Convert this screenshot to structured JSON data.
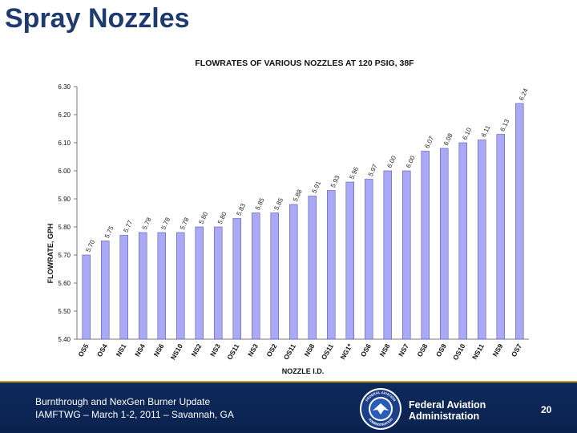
{
  "slide": {
    "title": "Spray Nozzles"
  },
  "colors": {
    "bar_fill": "#a9a9f5",
    "bar_stroke": "#5a5ab8",
    "title_color": "#1f3a6e",
    "footer_bg": "#0e2a5a",
    "footer_rule": "#c9a227"
  },
  "chart_data": {
    "type": "bar",
    "title": "FLOWRATES OF VARIOUS NOZZLES AT 120 PSIG, 38F",
    "xlabel": "NOZZLE I.D.",
    "ylabel": "FLOWRATE, GPH",
    "ylim": [
      5.4,
      6.3
    ],
    "yticks": [
      "5.40",
      "5.50",
      "5.60",
      "5.70",
      "5.80",
      "5.90",
      "6.00",
      "6.10",
      "6.20",
      "6.30"
    ],
    "categories": [
      "OS5",
      "OS4",
      "NS1",
      "NS4",
      "NS6",
      "NS10",
      "NS2",
      "NS3",
      "OS11",
      "NS3",
      "OS2",
      "OS11",
      "NS8",
      "OS11",
      "NG1*",
      "OS6",
      "NS8",
      "NS7",
      "OS8",
      "OS9",
      "OS10",
      "NS11",
      "NS9",
      "OS7"
    ],
    "values": [
      5.7,
      5.75,
      5.77,
      5.78,
      5.78,
      5.78,
      5.8,
      5.8,
      5.83,
      5.85,
      5.85,
      5.88,
      5.91,
      5.93,
      5.96,
      5.97,
      6.0,
      6.0,
      6.07,
      6.08,
      6.1,
      6.11,
      6.13,
      6.24
    ],
    "data_labels": [
      "5.70",
      "5.75",
      "5.77",
      "5.78",
      "5.78",
      "5.78",
      "5.80",
      "5.80",
      "5.83",
      "5.85",
      "5.85",
      "5.88",
      "5.91",
      "5.93",
      "5.96",
      "5.97",
      "6.00",
      "6.00",
      "6.07",
      "6.08",
      "6.10",
      "6.11",
      "6.13",
      "6.24"
    ]
  },
  "footer": {
    "line1": "Burnthrough and NexGen Burner Update",
    "line2": "IAMFTWG – March 1-2, 2011 – Savannah, GA",
    "agency_line1": "Federal Aviation",
    "agency_line2": "Administration",
    "page_number": "20",
    "seal_icon": "faa-seal-icon",
    "seal_text_top": "FEDERAL AVIATION",
    "seal_text_bottom": "ADMINISTRATION"
  }
}
